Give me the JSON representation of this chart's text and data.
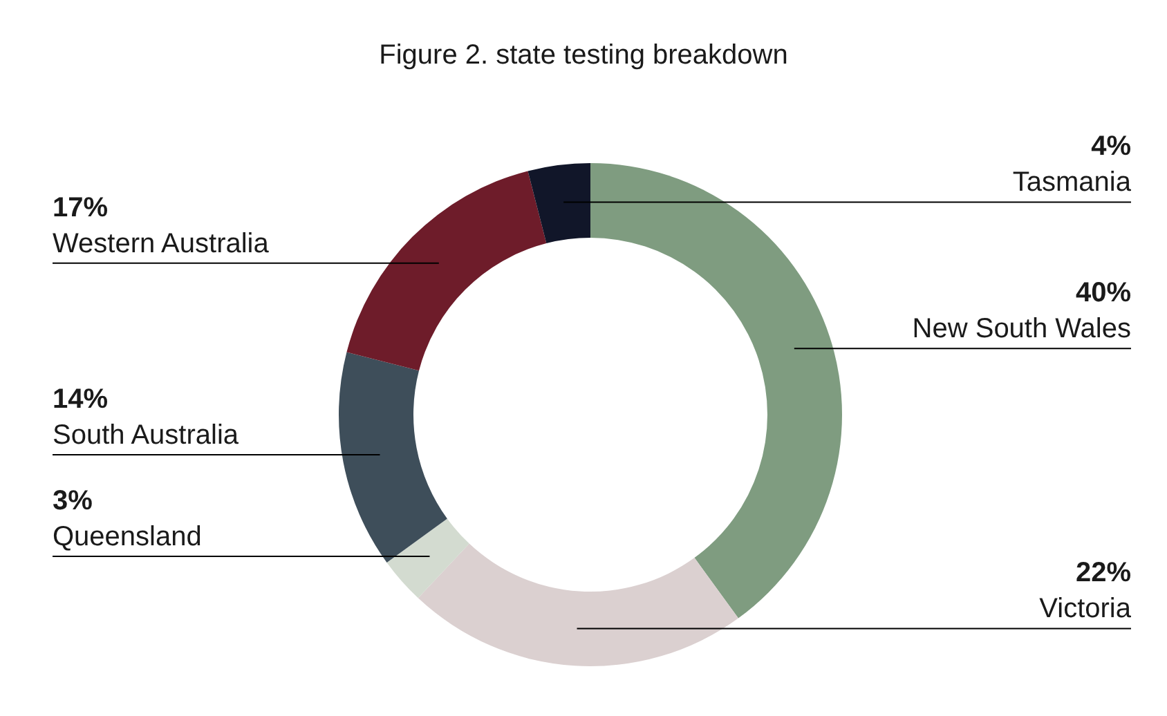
{
  "chart_data": {
    "type": "donut",
    "title": "Figure 2. state testing breakdown",
    "categories": [
      "New South Wales",
      "Victoria",
      "Queensland",
      "South Australia",
      "Western Australia",
      "Tasmania"
    ],
    "values": [
      40,
      22,
      3,
      14,
      17,
      4
    ],
    "value_labels": [
      "40%",
      "22%",
      "3%",
      "14%",
      "17%",
      "4%"
    ],
    "colors": [
      "#7f9c80",
      "#dbd0d0",
      "#d3dbd0",
      "#3e4e5a",
      "#6e1c2a",
      "#111629"
    ]
  }
}
